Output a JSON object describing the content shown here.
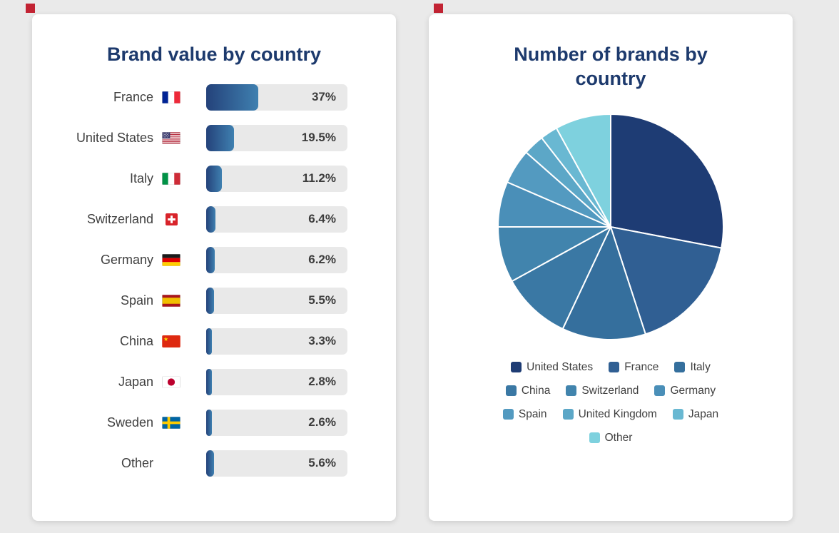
{
  "page": {
    "background_color": "#eaeaea",
    "marker_color": "#c22333",
    "title_color": "#1d3a6d"
  },
  "chart_data": [
    {
      "type": "bar",
      "orientation": "horizontal",
      "title": "Brand value by country",
      "unit": "%",
      "track_color": "#e9e9e9",
      "fill_gradient": [
        "#24427a",
        "#3f80b0"
      ],
      "items": [
        {
          "label": "France",
          "flag": "fr",
          "value": 37,
          "display": "37%"
        },
        {
          "label": "United States",
          "flag": "us",
          "value": 19.5,
          "display": "19.5%"
        },
        {
          "label": "Italy",
          "flag": "it",
          "value": 11.2,
          "display": "11.2%"
        },
        {
          "label": "Switzerland",
          "flag": "ch",
          "value": 6.4,
          "display": "6.4%"
        },
        {
          "label": "Germany",
          "flag": "de",
          "value": 6.2,
          "display": "6.2%"
        },
        {
          "label": "Spain",
          "flag": "es",
          "value": 5.5,
          "display": "5.5%"
        },
        {
          "label": "China",
          "flag": "cn",
          "value": 3.3,
          "display": "3.3%"
        },
        {
          "label": "Japan",
          "flag": "jp",
          "value": 2.8,
          "display": "2.8%"
        },
        {
          "label": "Sweden",
          "flag": "se",
          "value": 2.6,
          "display": "2.6%"
        },
        {
          "label": "Other",
          "flag": null,
          "value": 5.6,
          "display": "5.6%"
        }
      ]
    },
    {
      "type": "pie",
      "title": "Number of brands by country",
      "values_estimated": true,
      "legend_position": "bottom",
      "items": [
        {
          "label": "United States",
          "value": 28,
          "color": "#1e3c74"
        },
        {
          "label": "France",
          "value": 17,
          "color": "#305f93"
        },
        {
          "label": "Italy",
          "value": 12,
          "color": "#356f9d"
        },
        {
          "label": "China",
          "value": 10,
          "color": "#3a78a4"
        },
        {
          "label": "Switzerland",
          "value": 8,
          "color": "#4184ad"
        },
        {
          "label": "Germany",
          "value": 6.5,
          "color": "#4a8fb8"
        },
        {
          "label": "Spain",
          "value": 5,
          "color": "#539ac0"
        },
        {
          "label": "United Kingdom",
          "value": 3,
          "color": "#5ca7c7"
        },
        {
          "label": "Japan",
          "value": 2.5,
          "color": "#69b8d2"
        },
        {
          "label": "Other",
          "value": 8,
          "color": "#7ed1de"
        }
      ]
    }
  ]
}
